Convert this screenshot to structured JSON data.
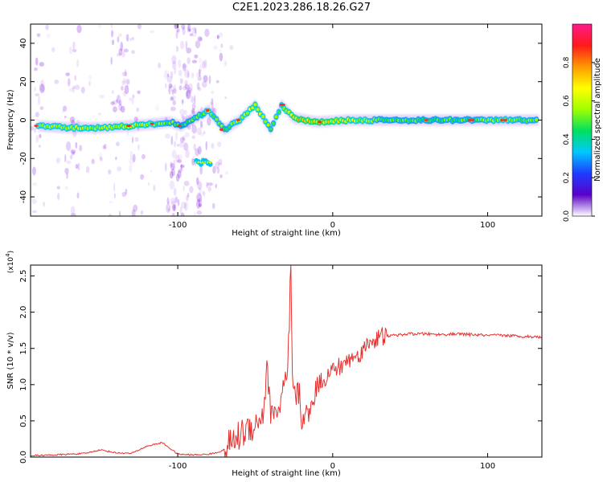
{
  "figure_title": "C2E1.2023.286.18.26.G27",
  "colors": {
    "snr_line": "#e8312f",
    "ridge_core": "#ff2a1a",
    "noise": "#8a2be2"
  },
  "chart_data": [
    {
      "type": "heatmap",
      "title": "",
      "xlabel": "Height of straight line (km)",
      "ylabel": "Frequency (Hz)",
      "xlim": [
        -195,
        135
      ],
      "ylim": [
        -50,
        50
      ],
      "xticks": [
        -100,
        0,
        100
      ],
      "xtick_labels": [
        "-100",
        "0",
        "100"
      ],
      "yticks": [
        40,
        20,
        0,
        -20,
        -40
      ],
      "ytick_labels": [
        "40",
        "20",
        "0",
        "-20",
        "-40"
      ],
      "colorbar": {
        "label": "Normalized spectral amplitude",
        "range": [
          0.0,
          1.0
        ],
        "ticks": [
          0.0,
          0.2,
          0.4,
          0.6,
          0.8
        ],
        "tick_labels": [
          "0.0",
          "0.2",
          "0.4",
          "0.6",
          "0.8"
        ],
        "colormap": [
          "#ffffff",
          "#5a00c8",
          "#1e3cff",
          "#00c8ff",
          "#00e060",
          "#a0ff00",
          "#ffff00",
          "#ff9900",
          "#ff1a1a",
          "#ff1a8c"
        ]
      },
      "ridge": [
        {
          "x": -190,
          "y": -3,
          "amp": 0.6
        },
        {
          "x": -170,
          "y": -4,
          "amp": 0.65
        },
        {
          "x": -150,
          "y": -4,
          "amp": 0.65
        },
        {
          "x": -130,
          "y": -3,
          "amp": 0.7
        },
        {
          "x": -115,
          "y": -2,
          "amp": 0.6
        },
        {
          "x": -105,
          "y": -1,
          "amp": 0.55
        },
        {
          "x": -98,
          "y": -3,
          "amp": 0.5
        },
        {
          "x": -80,
          "y": 5,
          "amp": 0.6
        },
        {
          "x": -70,
          "y": -5,
          "amp": 0.55
        },
        {
          "x": -60,
          "y": 0,
          "amp": 0.6
        },
        {
          "x": -50,
          "y": 8,
          "amp": 0.7
        },
        {
          "x": -40,
          "y": -5,
          "amp": 0.55
        },
        {
          "x": -33,
          "y": 8,
          "amp": 0.6
        },
        {
          "x": -25,
          "y": 1,
          "amp": 0.75
        },
        {
          "x": -10,
          "y": -1,
          "amp": 0.8
        },
        {
          "x": 10,
          "y": 0,
          "amp": 0.7
        },
        {
          "x": 30,
          "y": 0,
          "amp": 0.55
        },
        {
          "x": 60,
          "y": 0,
          "amp": 0.55
        },
        {
          "x": 90,
          "y": 0,
          "amp": 0.55
        },
        {
          "x": 110,
          "y": 0,
          "amp": 0.6
        },
        {
          "x": 133,
          "y": 0,
          "amp": 0.55
        }
      ],
      "secondary_blob": {
        "x": [
          -88,
          -78
        ],
        "y": -22,
        "amp": 0.6
      }
    },
    {
      "type": "line",
      "title": "",
      "xlabel": "Height of straight line (km)",
      "ylabel": "SNR (10 * v/v)",
      "y_multiplier": "(x10^4)",
      "xlim": [
        -195,
        135
      ],
      "ylim": [
        0,
        2.65
      ],
      "xticks": [
        -100,
        0,
        100
      ],
      "xtick_labels": [
        "-100",
        "0",
        "100"
      ],
      "yticks": [
        0.0,
        0.5,
        1.0,
        1.5,
        2.0,
        2.5
      ],
      "ytick_labels": [
        "0.0",
        "0.5",
        "1.0",
        "1.5",
        "2.0",
        "2.5"
      ],
      "series": [
        {
          "x": [
            -195,
            -180,
            -160,
            -150,
            -140,
            -130,
            -120,
            -110,
            -105,
            -100,
            -90,
            -80,
            -75,
            -70,
            -65,
            -60,
            -55,
            -50,
            -45,
            -42,
            -40,
            -38,
            -35,
            -32,
            -29,
            -27,
            -26,
            -25,
            -22,
            -20,
            -18,
            -15,
            -10,
            -5,
            0,
            5,
            10,
            15,
            20,
            25,
            30,
            35,
            40,
            50,
            60,
            70,
            80,
            90,
            100,
            110,
            120,
            130,
            135
          ],
          "y": [
            0.02,
            0.03,
            0.05,
            0.1,
            0.06,
            0.05,
            0.15,
            0.2,
            0.12,
            0.04,
            0.03,
            0.04,
            0.06,
            0.1,
            0.2,
            0.3,
            0.4,
            0.45,
            0.6,
            1.25,
            0.5,
            0.7,
            0.6,
            0.9,
            1.1,
            2.65,
            1.0,
            0.8,
            0.9,
            0.5,
            0.6,
            0.6,
            1.0,
            1.1,
            1.2,
            1.25,
            1.35,
            1.4,
            1.5,
            1.6,
            1.65,
            1.67,
            1.68,
            1.7,
            1.7,
            1.69,
            1.7,
            1.69,
            1.68,
            1.68,
            1.67,
            1.66,
            1.66
          ]
        }
      ]
    }
  ]
}
